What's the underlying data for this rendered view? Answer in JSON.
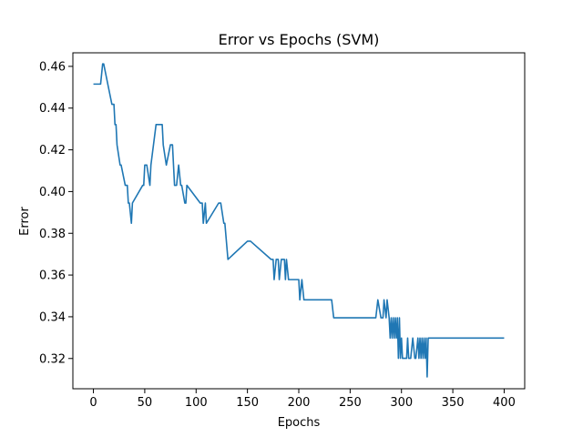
{
  "chart_data": {
    "type": "line",
    "title": "Error vs Epochs (SVM)",
    "xlabel": "Epochs",
    "ylabel": "Error",
    "xlim": [
      -20,
      420
    ],
    "ylim": [
      0.3055,
      0.4665
    ],
    "xticks": [
      0,
      50,
      100,
      150,
      200,
      250,
      300,
      350,
      400
    ],
    "yticks": [
      0.32,
      0.34,
      0.36,
      0.38,
      0.4,
      0.42,
      0.44,
      0.46
    ],
    "ytick_labels": [
      "0.32",
      "0.34",
      "0.36",
      "0.38",
      "0.40",
      "0.42",
      "0.44",
      "0.46"
    ],
    "grid": false,
    "legend": "none",
    "series": [
      {
        "color": "#1f77b4",
        "x": [
          0,
          7,
          9,
          10,
          18,
          20,
          21,
          22,
          23,
          26,
          27,
          31,
          33,
          34,
          35,
          37,
          38,
          48,
          49,
          50,
          52,
          55,
          56,
          61,
          67,
          68,
          71,
          75,
          77,
          79,
          81,
          83,
          85,
          86,
          89,
          90,
          91,
          104,
          106,
          107,
          109,
          110,
          122,
          124,
          127,
          128,
          131,
          150,
          153,
          173,
          175,
          176,
          178,
          180,
          181,
          183,
          186,
          187,
          188,
          190,
          191,
          200,
          201,
          203,
          205,
          232,
          234,
          275,
          277,
          280,
          282,
          283,
          285,
          286,
          288,
          289,
          290,
          291,
          292,
          293,
          294,
          295,
          296,
          297,
          298,
          299,
          300,
          301,
          305,
          306,
          307,
          309,
          311,
          313,
          314,
          316,
          317,
          318,
          319,
          320,
          321,
          322,
          323,
          324,
          325,
          326,
          327,
          400
        ],
        "y": [
          0.4515,
          0.4515,
          0.4612,
          0.4612,
          0.4418,
          0.4418,
          0.4321,
          0.4321,
          0.4224,
          0.4127,
          0.4127,
          0.403,
          0.403,
          0.3945,
          0.3945,
          0.3848,
          0.3945,
          0.403,
          0.403,
          0.4127,
          0.4127,
          0.403,
          0.4127,
          0.4321,
          0.4321,
          0.4224,
          0.4127,
          0.4224,
          0.4224,
          0.403,
          0.403,
          0.4127,
          0.403,
          0.403,
          0.3945,
          0.3945,
          0.403,
          0.3945,
          0.3945,
          0.3848,
          0.3945,
          0.3848,
          0.3945,
          0.3945,
          0.3848,
          0.3848,
          0.3675,
          0.3762,
          0.3762,
          0.3675,
          0.3675,
          0.3578,
          0.3675,
          0.3675,
          0.3578,
          0.3675,
          0.3675,
          0.3578,
          0.3675,
          0.3578,
          0.3578,
          0.3578,
          0.3481,
          0.3578,
          0.3481,
          0.3481,
          0.3395,
          0.3395,
          0.3481,
          0.3395,
          0.3395,
          0.3481,
          0.3395,
          0.3481,
          0.3395,
          0.3298,
          0.3395,
          0.3298,
          0.3395,
          0.3298,
          0.3395,
          0.3298,
          0.3395,
          0.3201,
          0.3395,
          0.3201,
          0.3298,
          0.3201,
          0.3201,
          0.3298,
          0.3201,
          0.3201,
          0.3298,
          0.3201,
          0.3201,
          0.3298,
          0.3201,
          0.3298,
          0.3201,
          0.3298,
          0.3201,
          0.3298,
          0.3201,
          0.3298,
          0.3112,
          0.3298,
          0.3298,
          0.3298
        ]
      }
    ]
  }
}
